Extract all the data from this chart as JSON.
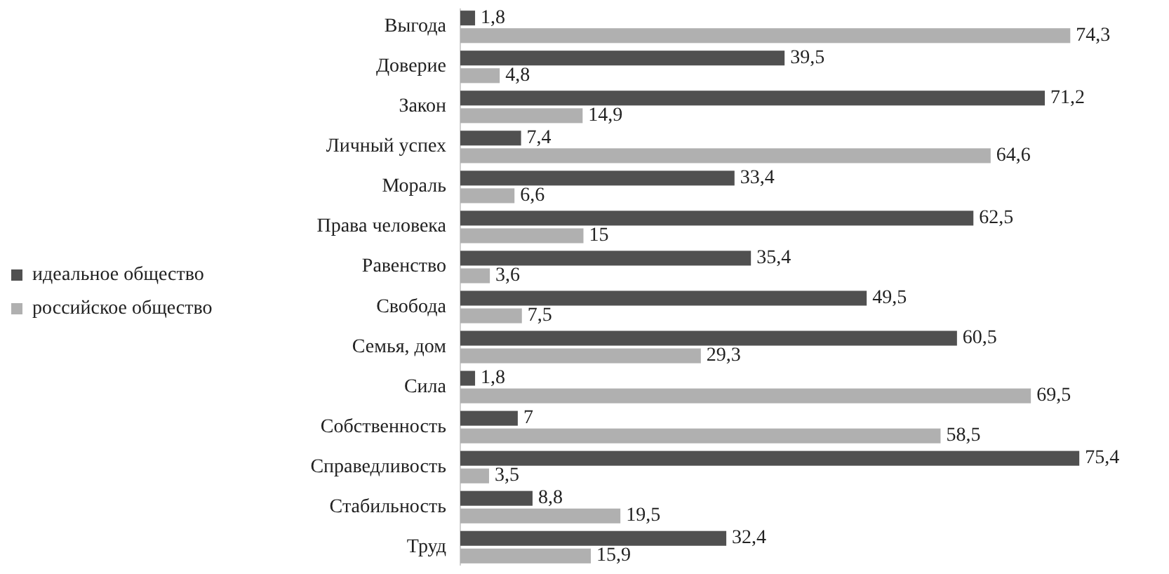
{
  "chart_data": {
    "type": "bar",
    "orientation": "horizontal",
    "legend": "left",
    "categories": [
      "Выгода",
      "Доверие",
      "Закон",
      "Личный успех",
      "Мораль",
      "Права человека",
      "Равенство",
      "Свобода",
      "Семья, дом",
      "Сила",
      "Собственность",
      "Справедливость",
      "Стабильность",
      "Труд"
    ],
    "series": [
      {
        "name": "идеальное общество",
        "color": "#505050",
        "values": [
          1.8,
          39.5,
          71.2,
          7.4,
          33.4,
          62.5,
          35.4,
          49.5,
          60.5,
          1.8,
          7,
          75.4,
          8.8,
          32.4
        ],
        "value_labels": [
          "1,8",
          "39,5",
          "71,2",
          "7,4",
          "33,4",
          "62,5",
          "35,4",
          "49,5",
          "60,5",
          "1,8",
          "7",
          "75,4",
          "8,8",
          "32,4"
        ]
      },
      {
        "name": "российское общество",
        "color": "#b0b0b0",
        "values": [
          74.3,
          4.8,
          14.9,
          64.6,
          6.6,
          15,
          3.6,
          7.5,
          29.3,
          69.5,
          58.5,
          3.5,
          19.5,
          15.9
        ],
        "value_labels": [
          "74,3",
          "4,8",
          "14,9",
          "64,6",
          "6,6",
          "15",
          "3,6",
          "7,5",
          "29,3",
          "69,5",
          "58,5",
          "3,5",
          "19,5",
          "15,9"
        ]
      }
    ]
  }
}
